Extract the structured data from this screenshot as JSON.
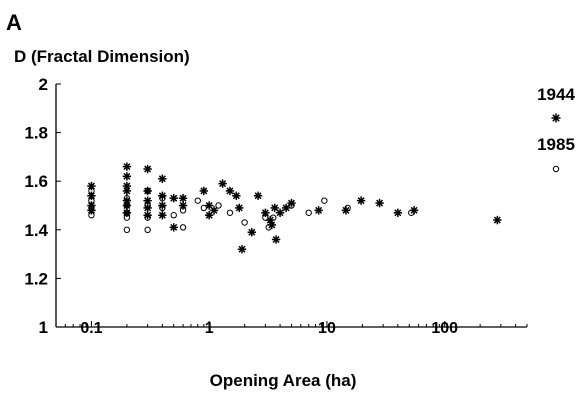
{
  "panel_label": "A",
  "chart_data": {
    "type": "scatter",
    "ylabel": "D (Fractal Dimension)",
    "xlabel": "Opening Area (ha)",
    "x_scale": "log",
    "xlim": [
      0.05,
      500
    ],
    "ylim": [
      1,
      2
    ],
    "x_ticks": [
      {
        "value": 0.1,
        "label": "0.1"
      },
      {
        "value": 1,
        "label": "1"
      },
      {
        "value": 10,
        "label": "10"
      },
      {
        "value": 100,
        "label": "100"
      }
    ],
    "y_ticks": [
      {
        "value": 1,
        "label": "1"
      },
      {
        "value": 1.2,
        "label": "1.2"
      },
      {
        "value": 1.4,
        "label": "1.4"
      },
      {
        "value": 1.6,
        "label": "1.6"
      },
      {
        "value": 1.8,
        "label": "1.8"
      },
      {
        "value": 2,
        "label": "2"
      }
    ],
    "grid": false,
    "legend_position": "right",
    "series": [
      {
        "name": "1944",
        "marker": "star",
        "points": [
          [
            0.1,
            1.58
          ],
          [
            0.1,
            1.54
          ],
          [
            0.1,
            1.5
          ],
          [
            0.1,
            1.48
          ],
          [
            0.2,
            1.66
          ],
          [
            0.2,
            1.62
          ],
          [
            0.2,
            1.58
          ],
          [
            0.2,
            1.56
          ],
          [
            0.2,
            1.52
          ],
          [
            0.2,
            1.5
          ],
          [
            0.2,
            1.47
          ],
          [
            0.3,
            1.65
          ],
          [
            0.3,
            1.56
          ],
          [
            0.3,
            1.52
          ],
          [
            0.3,
            1.49
          ],
          [
            0.3,
            1.46
          ],
          [
            0.4,
            1.61
          ],
          [
            0.4,
            1.54
          ],
          [
            0.4,
            1.5
          ],
          [
            0.4,
            1.46
          ],
          [
            0.5,
            1.53
          ],
          [
            0.5,
            1.41
          ],
          [
            0.6,
            1.53
          ],
          [
            0.6,
            1.5
          ],
          [
            0.9,
            1.56
          ],
          [
            1.0,
            1.5
          ],
          [
            1.0,
            1.46
          ],
          [
            1.1,
            1.48
          ],
          [
            1.3,
            1.59
          ],
          [
            1.5,
            1.56
          ],
          [
            1.7,
            1.54
          ],
          [
            1.8,
            1.49
          ],
          [
            1.9,
            1.32
          ],
          [
            2.3,
            1.39
          ],
          [
            2.6,
            1.54
          ],
          [
            3.0,
            1.47
          ],
          [
            3.3,
            1.44
          ],
          [
            3.4,
            1.42
          ],
          [
            3.6,
            1.49
          ],
          [
            3.7,
            1.36
          ],
          [
            4.0,
            1.47
          ],
          [
            4.5,
            1.49
          ],
          [
            5.0,
            1.51
          ],
          [
            8.5,
            1.48
          ],
          [
            14.5,
            1.48
          ],
          [
            19.5,
            1.52
          ],
          [
            28,
            1.51
          ],
          [
            40,
            1.47
          ],
          [
            55,
            1.48
          ],
          [
            280,
            1.44
          ]
        ]
      },
      {
        "name": "1985",
        "marker": "circle",
        "points": [
          [
            0.1,
            1.56
          ],
          [
            0.1,
            1.52
          ],
          [
            0.1,
            1.49
          ],
          [
            0.1,
            1.46
          ],
          [
            0.2,
            1.53
          ],
          [
            0.2,
            1.5
          ],
          [
            0.2,
            1.47
          ],
          [
            0.2,
            1.45
          ],
          [
            0.2,
            1.4
          ],
          [
            0.3,
            1.56
          ],
          [
            0.3,
            1.5
          ],
          [
            0.3,
            1.45
          ],
          [
            0.3,
            1.4
          ],
          [
            0.4,
            1.53
          ],
          [
            0.4,
            1.49
          ],
          [
            0.5,
            1.46
          ],
          [
            0.6,
            1.48
          ],
          [
            0.6,
            1.41
          ],
          [
            0.8,
            1.52
          ],
          [
            0.9,
            1.49
          ],
          [
            1.2,
            1.5
          ],
          [
            1.5,
            1.47
          ],
          [
            2.0,
            1.43
          ],
          [
            3.0,
            1.45
          ],
          [
            3.2,
            1.41
          ],
          [
            3.5,
            1.45
          ],
          [
            5.0,
            1.5
          ],
          [
            7.0,
            1.47
          ],
          [
            9.5,
            1.52
          ],
          [
            15,
            1.49
          ],
          [
            52,
            1.47
          ]
        ]
      }
    ]
  }
}
